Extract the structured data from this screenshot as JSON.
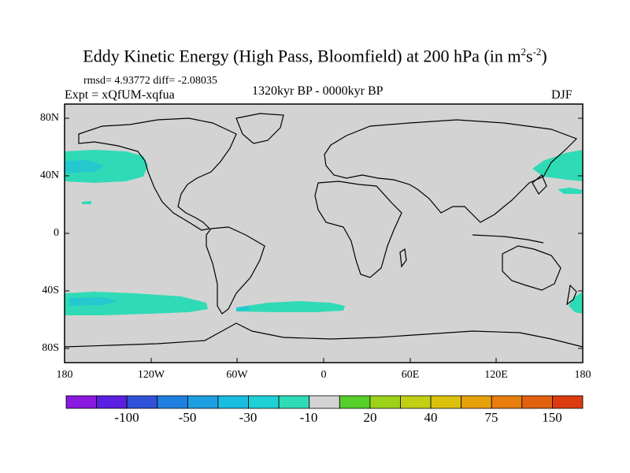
{
  "title": {
    "main": "Eddy Kinetic Energy (High Pass, Bloomfield) at 200 hPa (in m",
    "sup1": "2",
    "mid": "s",
    "sup2": "-2",
    "close": ")"
  },
  "stats": "rmsd= 4.93772 diff= -2.08035",
  "experiment": "Expt = xQfUM-xqfua",
  "period": "1320kyr BP - 0000kyr BP",
  "season": "DJF",
  "map": {
    "y_labels": [
      "80N",
      "40N",
      "0",
      "40S",
      "80S"
    ],
    "x_labels": [
      "180",
      "120W",
      "60W",
      "0",
      "60E",
      "120E",
      "180"
    ],
    "land_fill": "#d3d3d3",
    "anomaly_regions": [
      {
        "name": "north-pacific-east",
        "color": "#2fdbb6"
      },
      {
        "name": "north-pacific-west",
        "color": "#2fdbb6"
      },
      {
        "name": "south-pacific",
        "color": "#2fdbb6"
      },
      {
        "name": "south-atlantic",
        "color": "#2fdbb6"
      },
      {
        "name": "south-pacific-east-edge",
        "color": "#2fdbb6"
      }
    ]
  },
  "colorbar": {
    "colors": [
      "#8a18e0",
      "#5a1fe0",
      "#2f52d9",
      "#1f7fe0",
      "#1d9ee0",
      "#19bde0",
      "#1dd0d5",
      "#2fdbb6",
      "#d3d3d3",
      "#56cf2a",
      "#9cd21a",
      "#c2cf13",
      "#dcc10c",
      "#e7a10a",
      "#e77e0d",
      "#e2610f",
      "#dc3b10"
    ],
    "labels": [
      "-100",
      "-50",
      "-30",
      "-10",
      "20",
      "40",
      "75",
      "150"
    ]
  }
}
